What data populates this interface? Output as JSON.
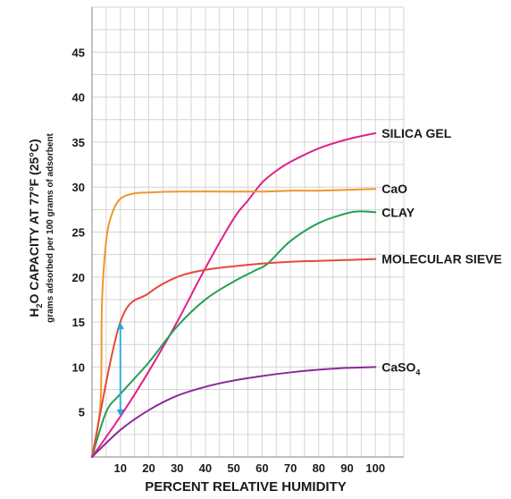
{
  "chart_data": {
    "type": "line",
    "xlabel": "PERCENT RELATIVE HUMIDITY",
    "ylabel_main": "H",
    "ylabel_sub": "2",
    "ylabel_rest": "O CAPACITY AT 77°F (25°C)",
    "ylabel_secondary": "grams adsorbed per 100 grams of adsorbent",
    "xlim": [
      0,
      110
    ],
    "ylim": [
      0,
      50
    ],
    "xticks": [
      "10",
      "20",
      "30",
      "40",
      "50",
      "60",
      "70",
      "80",
      "90",
      "100"
    ],
    "xtick_values": [
      10,
      20,
      30,
      40,
      50,
      60,
      70,
      80,
      90,
      100
    ],
    "yticks": [
      "5",
      "10",
      "15",
      "20",
      "25",
      "30",
      "35",
      "40",
      "45"
    ],
    "ytick_values": [
      5,
      10,
      15,
      20,
      25,
      30,
      35,
      40,
      45
    ],
    "grid": true,
    "series": [
      {
        "name": "SILICA GEL",
        "color": "#e0208c",
        "points": [
          [
            0,
            0
          ],
          [
            10,
            4.5
          ],
          [
            20,
            9.5
          ],
          [
            30,
            15
          ],
          [
            40,
            21
          ],
          [
            50,
            26.5
          ],
          [
            55,
            28.5
          ],
          [
            60,
            30.5
          ],
          [
            65,
            31.8
          ],
          [
            70,
            32.8
          ],
          [
            80,
            34.3
          ],
          [
            90,
            35.3
          ],
          [
            100,
            36
          ]
        ]
      },
      {
        "name": "CaO",
        "color": "#f0962a",
        "points": [
          [
            0,
            0
          ],
          [
            3,
            6
          ],
          [
            3.5,
            17
          ],
          [
            5,
            24
          ],
          [
            7,
            27
          ],
          [
            10,
            28.7
          ],
          [
            15,
            29.3
          ],
          [
            20,
            29.4
          ],
          [
            30,
            29.5
          ],
          [
            50,
            29.5
          ],
          [
            60,
            29.5
          ],
          [
            70,
            29.6
          ],
          [
            80,
            29.6
          ],
          [
            90,
            29.7
          ],
          [
            100,
            29.8
          ]
        ]
      },
      {
        "name": "CLAY",
        "color": "#22a052",
        "points": [
          [
            0,
            0
          ],
          [
            5,
            5
          ],
          [
            10,
            7
          ],
          [
            20,
            10.5
          ],
          [
            30,
            14.5
          ],
          [
            40,
            17.5
          ],
          [
            50,
            19.5
          ],
          [
            58,
            20.8
          ],
          [
            62,
            21.5
          ],
          [
            70,
            24
          ],
          [
            80,
            26
          ],
          [
            90,
            27.1
          ],
          [
            95,
            27.3
          ],
          [
            100,
            27.2
          ]
        ]
      },
      {
        "name": "MOLECULAR SIEVE",
        "color": "#e44a3a",
        "points": [
          [
            0,
            0
          ],
          [
            10,
            15
          ],
          [
            20,
            18.2
          ],
          [
            30,
            20
          ],
          [
            40,
            20.8
          ],
          [
            50,
            21.2
          ],
          [
            60,
            21.5
          ],
          [
            70,
            21.7
          ],
          [
            80,
            21.8
          ],
          [
            90,
            21.9
          ],
          [
            100,
            22
          ]
        ]
      },
      {
        "name": "CaSO",
        "name_sub": "4",
        "color": "#8a2a9a",
        "points": [
          [
            0,
            0
          ],
          [
            10,
            3
          ],
          [
            20,
            5.2
          ],
          [
            30,
            6.8
          ],
          [
            40,
            7.8
          ],
          [
            50,
            8.5
          ],
          [
            60,
            9
          ],
          [
            70,
            9.4
          ],
          [
            80,
            9.7
          ],
          [
            90,
            9.9
          ],
          [
            100,
            10
          ]
        ]
      }
    ],
    "arrow": {
      "color": "#1fa8e0",
      "x": 10,
      "y_from": 4.5,
      "y_to": 15
    }
  }
}
